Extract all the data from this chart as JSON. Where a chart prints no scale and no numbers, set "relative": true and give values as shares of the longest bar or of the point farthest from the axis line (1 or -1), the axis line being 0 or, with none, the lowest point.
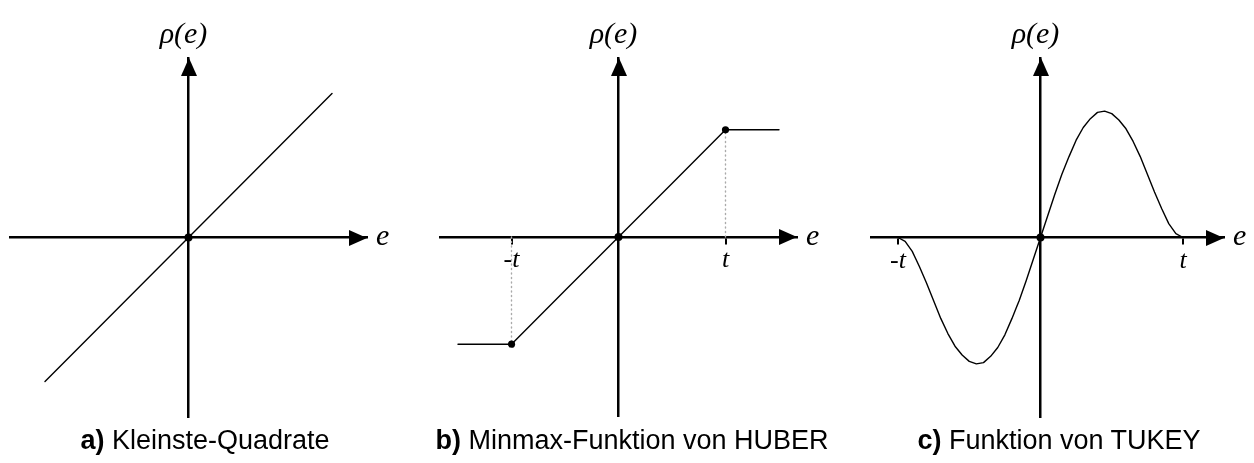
{
  "chart_data": [
    {
      "type": "line",
      "title": "a) Kleinste-Quadrate",
      "xlabel": "e",
      "ylabel": "ρ(e)",
      "relative": true,
      "categories": [
        null,
        null,
        null
      ],
      "values": [
        -1,
        0,
        1
      ],
      "color": "#000000"
    },
    {
      "type": "line",
      "title": "b) Minmax-Funktion von HUBER",
      "xlabel": "e",
      "ylabel": "ρ(e)",
      "relative": true,
      "categories": [
        null,
        "-t",
        null,
        null,
        null,
        "t",
        null
      ],
      "series": [
        {
          "color": "#000000",
          "values": [
            -1,
            -1,
            -0.5,
            0,
            0.5,
            1,
            1
          ]
        },
        {
          "color": "#aaaaaa",
          "line_style": "dotted",
          "x": [
            "-t",
            "-t"
          ],
          "values": [
            0,
            -1
          ]
        },
        {
          "color": "#aaaaaa",
          "line_style": "dotted",
          "x": [
            "t",
            "t"
          ],
          "values": [
            0,
            1
          ]
        },
        {
          "type": "scatter",
          "color": "#000000",
          "marker": "circle",
          "x": [
            "-t",
            "t"
          ],
          "values": [
            -1,
            1
          ]
        }
      ]
    },
    {
      "type": "line",
      "title": "c) Funktion von TUKEY",
      "xlabel": "e",
      "ylabel": "ρ(e)",
      "relative": true,
      "color": "#000000",
      "categories": [
        "-t",
        null,
        null,
        null,
        null,
        null,
        null,
        null,
        null,
        null,
        null,
        null,
        null,
        null,
        null,
        null,
        null,
        null,
        null,
        null,
        null,
        null,
        null,
        null,
        null,
        null,
        null,
        null,
        null,
        null,
        null,
        null,
        null,
        null,
        null,
        null,
        null,
        null,
        null,
        null,
        "t"
      ],
      "values": [
        0,
        -0.03,
        -0.11,
        -0.23,
        -0.36,
        -0.5,
        -0.64,
        -0.76,
        -0.86,
        -0.93,
        -0.98,
        -1,
        -0.99,
        -0.94,
        -0.87,
        -0.77,
        -0.64,
        -0.5,
        -0.34,
        -0.17,
        0,
        0.17,
        0.34,
        0.5,
        0.64,
        0.77,
        0.87,
        0.94,
        0.99,
        1,
        0.98,
        0.93,
        0.86,
        0.76,
        0.64,
        0.5,
        0.36,
        0.23,
        0.11,
        0.03,
        0
      ]
    }
  ]
}
